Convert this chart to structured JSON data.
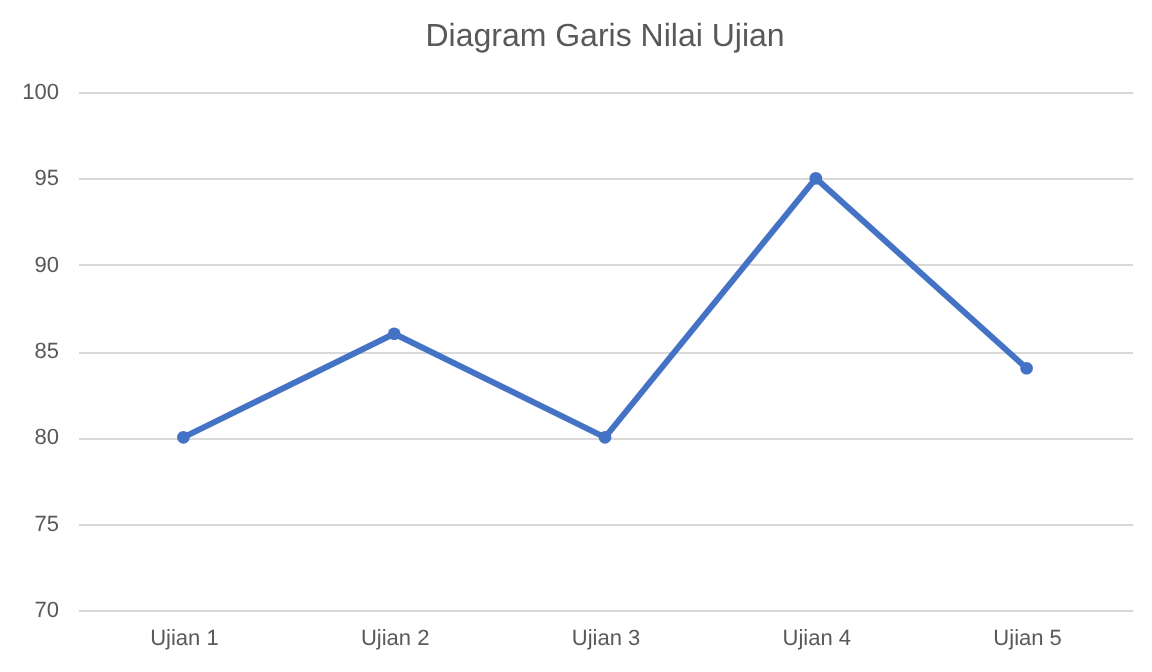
{
  "chart_data": {
    "type": "line",
    "title": "Diagram Garis Nilai Ujian",
    "categories": [
      "Ujian 1",
      "Ujian 2",
      "Ujian 3",
      "Ujian 4",
      "Ujian 5"
    ],
    "series": [
      {
        "color": "#4472c4",
        "values": [
          80,
          86,
          80,
          95,
          84
        ]
      }
    ],
    "ylim": [
      70,
      100
    ],
    "yticks": [
      70,
      75,
      80,
      85,
      90,
      95,
      100
    ],
    "grid": "y",
    "marker": "circle",
    "line_style": "solid",
    "legend": false
  }
}
